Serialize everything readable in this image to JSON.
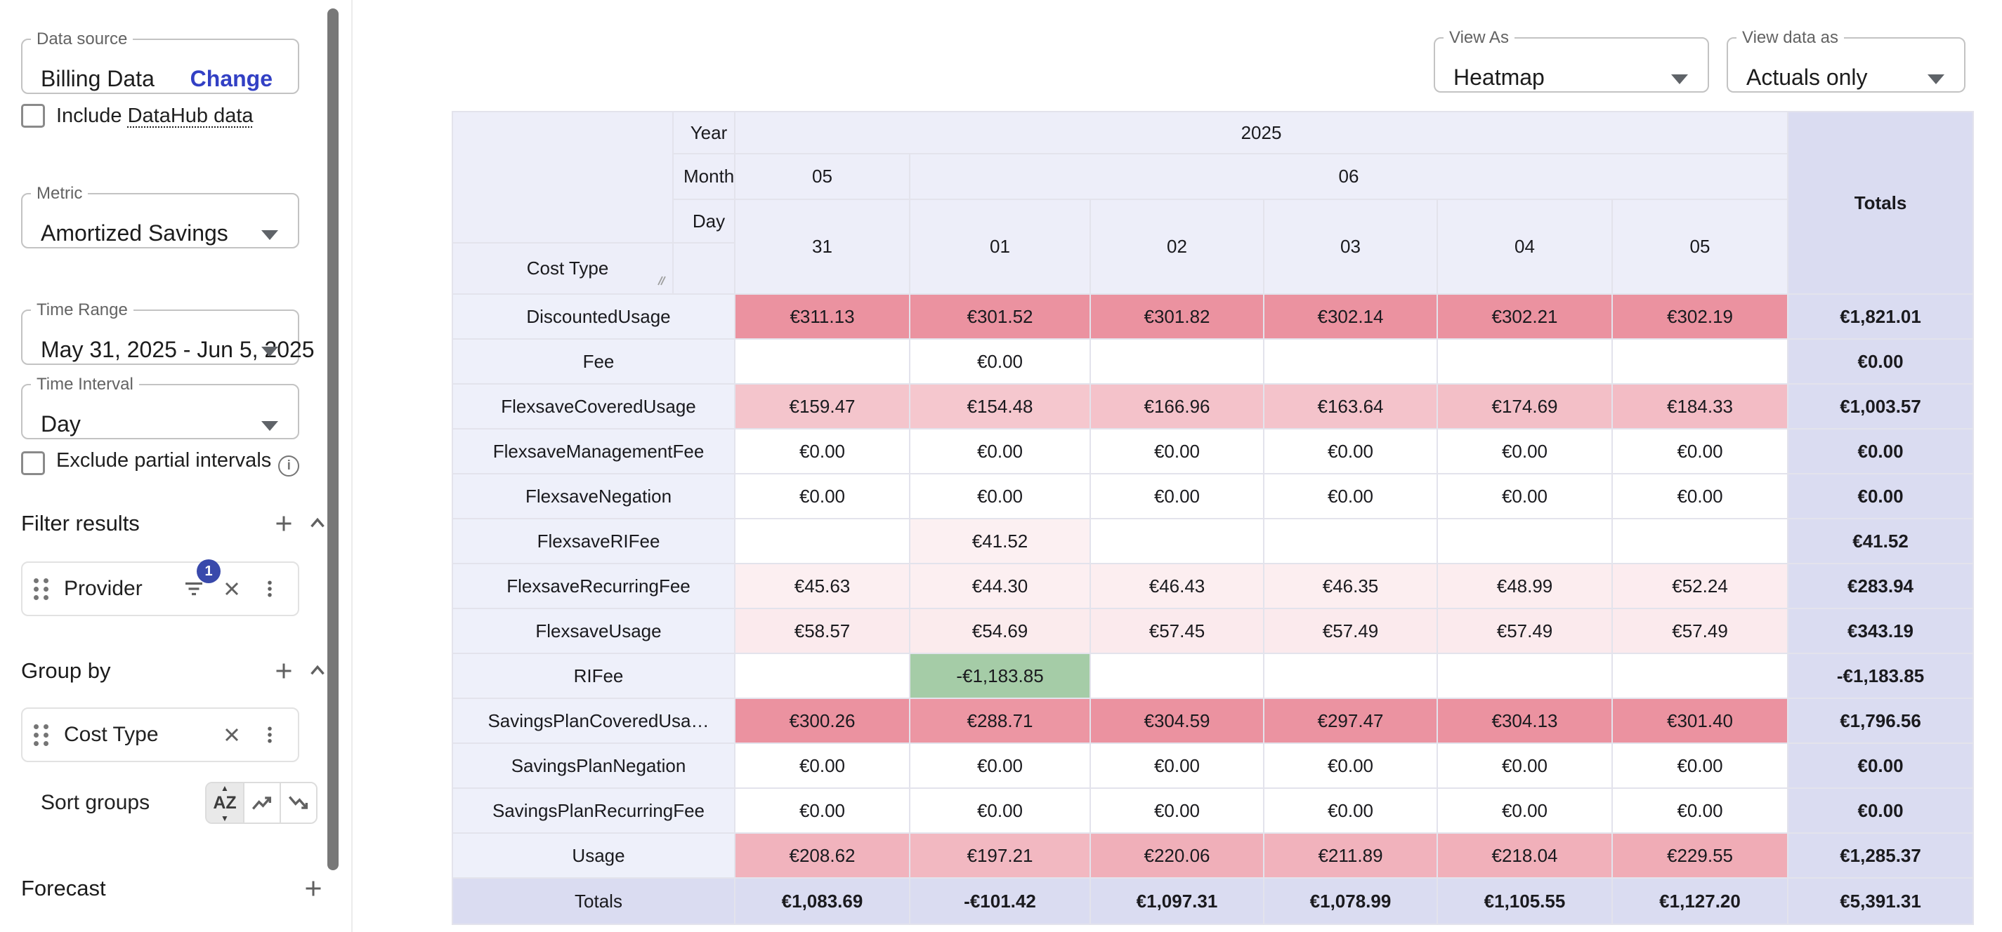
{
  "colors": {
    "accent": "#3949ab",
    "link": "#3240c4",
    "heat_positive_rgb": "219,57,82",
    "heat_negative_rgb": "56,142,60",
    "header_bg": "#edeef9",
    "label_bg": "#eef0fa",
    "totals_bg": "#dadcf1"
  },
  "sidebar": {
    "data_source": {
      "label": "Data source",
      "value": "Billing Data",
      "action": "Change"
    },
    "include_datahub": {
      "prefix": "Include ",
      "link": "DataHub data"
    },
    "metric": {
      "label": "Metric",
      "value": "Amortized Savings"
    },
    "time_range": {
      "label": "Time Range",
      "value": "May 31, 2025 - Jun 5, 2025"
    },
    "time_interval": {
      "label": "Time Interval",
      "value": "Day"
    },
    "exclude_partial": {
      "label": "Exclude partial intervals"
    },
    "filter_results": {
      "title": "Filter results",
      "chips": [
        {
          "label": "Provider",
          "badge": "1"
        }
      ]
    },
    "group_by": {
      "title": "Group by",
      "chips": [
        {
          "label": "Cost Type"
        }
      ]
    },
    "sort_groups": {
      "label": "Sort groups",
      "az": "AZ"
    },
    "forecast": {
      "title": "Forecast"
    }
  },
  "toolbar": {
    "view_as": {
      "label": "View As",
      "value": "Heatmap"
    },
    "view_data_as": {
      "label": "View data as",
      "value": "Actuals only"
    }
  },
  "table": {
    "corner_label": "Cost Type",
    "axis_labels": [
      "Year",
      "Month",
      "Day"
    ],
    "year": "2025",
    "months": [
      {
        "label": "05",
        "span": 1
      },
      {
        "label": "06",
        "span": 5
      }
    ],
    "days": [
      "31",
      "01",
      "02",
      "03",
      "04",
      "05"
    ],
    "totals_label": "Totals",
    "currency": "€",
    "rows": [
      {
        "label": "DiscountedUsage",
        "values": [
          311.13,
          301.52,
          301.82,
          302.14,
          302.21,
          302.19
        ],
        "total": 1821.01
      },
      {
        "label": "Fee",
        "values": [
          null,
          0,
          null,
          null,
          null,
          null
        ],
        "total": 0
      },
      {
        "label": "FlexsaveCoveredUsage",
        "values": [
          159.47,
          154.48,
          166.96,
          163.64,
          174.69,
          184.33
        ],
        "total": 1003.57
      },
      {
        "label": "FlexsaveManagementFee",
        "values": [
          0,
          0,
          0,
          0,
          0,
          0
        ],
        "total": 0
      },
      {
        "label": "FlexsaveNegation",
        "values": [
          0,
          0,
          0,
          0,
          0,
          0
        ],
        "total": 0
      },
      {
        "label": "FlexsaveRIFee",
        "values": [
          null,
          41.52,
          null,
          null,
          null,
          null
        ],
        "total": 41.52
      },
      {
        "label": "FlexsaveRecurringFee",
        "values": [
          45.63,
          44.3,
          46.43,
          46.35,
          48.99,
          52.24
        ],
        "total": 283.94
      },
      {
        "label": "FlexsaveUsage",
        "values": [
          58.57,
          54.69,
          57.45,
          57.49,
          57.49,
          57.49
        ],
        "total": 343.19
      },
      {
        "label": "RIFee",
        "values": [
          null,
          -1183.85,
          null,
          null,
          null,
          null
        ],
        "total": -1183.85
      },
      {
        "label": "SavingsPlanCoveredUsa…",
        "values": [
          300.26,
          288.71,
          304.59,
          297.47,
          304.13,
          301.4
        ],
        "total": 1796.56
      },
      {
        "label": "SavingsPlanNegation",
        "values": [
          0,
          0,
          0,
          0,
          0,
          0
        ],
        "total": 0
      },
      {
        "label": "SavingsPlanRecurringFee",
        "values": [
          0,
          0,
          0,
          0,
          0,
          0
        ],
        "total": 0
      },
      {
        "label": "Usage",
        "values": [
          208.62,
          197.21,
          220.06,
          211.89,
          218.04,
          229.55
        ],
        "total": 1285.37
      }
    ],
    "totals_row": {
      "label": "Totals",
      "values": [
        1083.69,
        -101.42,
        1097.31,
        1078.99,
        1105.55,
        1127.2
      ],
      "total": 5391.31
    }
  }
}
